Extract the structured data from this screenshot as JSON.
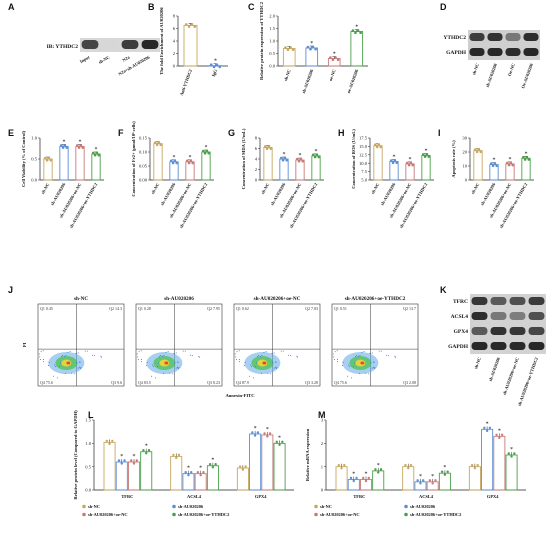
{
  "panels": {
    "A": {
      "label": "A",
      "blot_label": "IB: YTHDC2",
      "lanes": [
        "Input",
        "sh-NC",
        "N2a",
        "N2a+sh-AU020206"
      ]
    },
    "B": {
      "label": "B",
      "ylabel": "The fold Enrichment of AU020206",
      "categories": [
        "Anti-YTHDC2",
        "IgG"
      ],
      "values": [
        6.5,
        0.05
      ],
      "yticks": [
        "0",
        "2",
        "4",
        "6",
        "8"
      ],
      "ylim": [
        0,
        8
      ],
      "color": "#c8a860"
    },
    "C": {
      "label": "C",
      "ylabel": "Relative protein expression of YTHDC2",
      "categories": [
        "sh-NC",
        "sh-AU020206",
        "oe-NC",
        "oe-AU020206"
      ],
      "values": [
        0.7,
        0.72,
        0.3,
        1.38
      ],
      "yticks": [
        "0.0",
        "0.5",
        "1.0",
        "1.5",
        "2.0"
      ],
      "ylim": [
        0,
        2
      ],
      "colors": [
        "#c8a860",
        "#5b8fd6",
        "#c87a78",
        "#4aa04a"
      ]
    },
    "D": {
      "label": "D",
      "rows": [
        "YTHDC2",
        "GAPDH"
      ],
      "lanes": [
        "sh-NC",
        "sh-AU020206",
        "Oe-NC",
        "Oe-AU020206"
      ]
    },
    "E": {
      "label": "E",
      "ylabel": "Cell Viability (% of Control)",
      "values": [
        0.5,
        0.8,
        0.8,
        0.62
      ],
      "yticks": [
        "0.0",
        "0.5",
        "1.0"
      ],
      "ylim": [
        0,
        1
      ]
    },
    "F": {
      "label": "F",
      "ylabel": "Concentration of Fe2+ (μmol/10⁶ cells)",
      "values": [
        0.13,
        0.065,
        0.065,
        0.1
      ],
      "yticks": [
        "0.00",
        "0.05",
        "0.10",
        "0.15"
      ],
      "ylim": [
        0,
        0.15
      ]
    },
    "G": {
      "label": "G",
      "ylabel": "Concentration of MDA (U/mL)",
      "values": [
        6.2,
        4.0,
        3.8,
        4.6
      ],
      "yticks": [
        "0",
        "2",
        "4",
        "6",
        "8"
      ],
      "ylim": [
        0,
        8
      ]
    },
    "H": {
      "label": "H",
      "ylabel": "Concentration of ROS (U/mL)",
      "values": [
        15.2,
        10.5,
        9.8,
        12.3
      ],
      "yticks": [
        "5.0",
        "7.5",
        "10.0",
        "12.5",
        "15.0",
        "17.5"
      ],
      "ylim": [
        5,
        17.5
      ]
    },
    "I": {
      "label": "I",
      "ylabel": "Apoptosis rate (%)",
      "values": [
        21,
        11,
        11.5,
        15.5
      ],
      "yticks": [
        "0",
        "10",
        "20",
        "30"
      ],
      "ylim": [
        0,
        30
      ]
    },
    "J": {
      "label": "J",
      "titles": [
        "sh-NC",
        "sh-AU020206",
        "sh-AU020206+oe-NC",
        "sh-AU020206+oe-YTHDC2"
      ],
      "xlabel": "Annexin-FITC",
      "ylabel": "PI",
      "quadrants": [
        [
          "Q1 0.45",
          "Q2 14.3",
          "Q4 75.6",
          "Q3 9.6"
        ],
        [
          "Q1 0.28",
          "Q2 7.95",
          "Q4 83.5",
          "Q3 8.23"
        ],
        [
          "Q1 0.62",
          "Q2 7.83",
          "Q4 87.9",
          "Q3 3.28"
        ],
        [
          "Q1 0.51",
          "Q2 13.7",
          "Q4 75.6",
          "Q3 2.08"
        ]
      ]
    },
    "K": {
      "label": "K",
      "rows": [
        "TFRC",
        "ACSL4",
        "GPX4",
        "GAPDH"
      ],
      "lanes": [
        "sh-NC",
        "sh-AU020206",
        "sh-AU020206+oe-NC",
        "sh-AU020206+oe-YTHDC2"
      ]
    },
    "L": {
      "label": "L",
      "ylabel": "Relative protein level (Compared to GAPDH)",
      "groups": [
        "TFRC",
        "ACSL4",
        "GPX4"
      ],
      "yticks": [
        "0.0",
        "0.5",
        "1.0",
        "1.5"
      ],
      "ylim": [
        0,
        1.5
      ]
    },
    "M": {
      "label": "M",
      "ylabel": "Relative mRNA expression",
      "groups": [
        "TFRC",
        "ACSL4",
        "GPX4"
      ],
      "yticks": [
        "0",
        "1",
        "2",
        "3"
      ],
      "ylim": [
        0,
        3
      ]
    }
  },
  "group_labels": [
    "sh-NC",
    "sh-AU020206",
    "sh-AU020206+oe-NC",
    "sh-AU020206+oe-YTHDC2"
  ],
  "legend": [
    "sh-NC",
    "sh-AU020206",
    "sh-AU020206+oe-NC",
    "sh-AU020206+oe-YTHDC2"
  ],
  "colors": {
    "c1": "#c8a860",
    "c2": "#5b8fd6",
    "c3": "#c87a78",
    "c4": "#4aa04a"
  },
  "chart_data": [
    {
      "type": "bar",
      "panel": "L",
      "categories": [
        "TFRC",
        "ACSL4",
        "GPX4"
      ],
      "series": [
        {
          "name": "sh-NC",
          "values": [
            1.02,
            0.72,
            0.47
          ]
        },
        {
          "name": "sh-AU020206",
          "values": [
            0.6,
            0.35,
            1.2
          ]
        },
        {
          "name": "sh-AU020206+oe-NC",
          "values": [
            0.6,
            0.35,
            1.18
          ]
        },
        {
          "name": "sh-AU020206+oe-YTHDC2",
          "values": [
            0.82,
            0.52,
            1.0
          ]
        }
      ],
      "ylim": [
        0,
        1.5
      ]
    },
    {
      "type": "bar",
      "panel": "M",
      "categories": [
        "TFRC",
        "ACSL4",
        "GPX4"
      ],
      "series": [
        {
          "name": "sh-NC",
          "values": [
            1.0,
            1.0,
            1.0
          ]
        },
        {
          "name": "sh-AU020206",
          "values": [
            0.45,
            0.35,
            2.6
          ]
        },
        {
          "name": "sh-AU020206+oe-NC",
          "values": [
            0.45,
            0.35,
            2.3
          ]
        },
        {
          "name": "sh-AU020206+oe-YTHDC2",
          "values": [
            0.82,
            0.72,
            1.5
          ]
        }
      ],
      "ylim": [
        0,
        3
      ]
    }
  ]
}
